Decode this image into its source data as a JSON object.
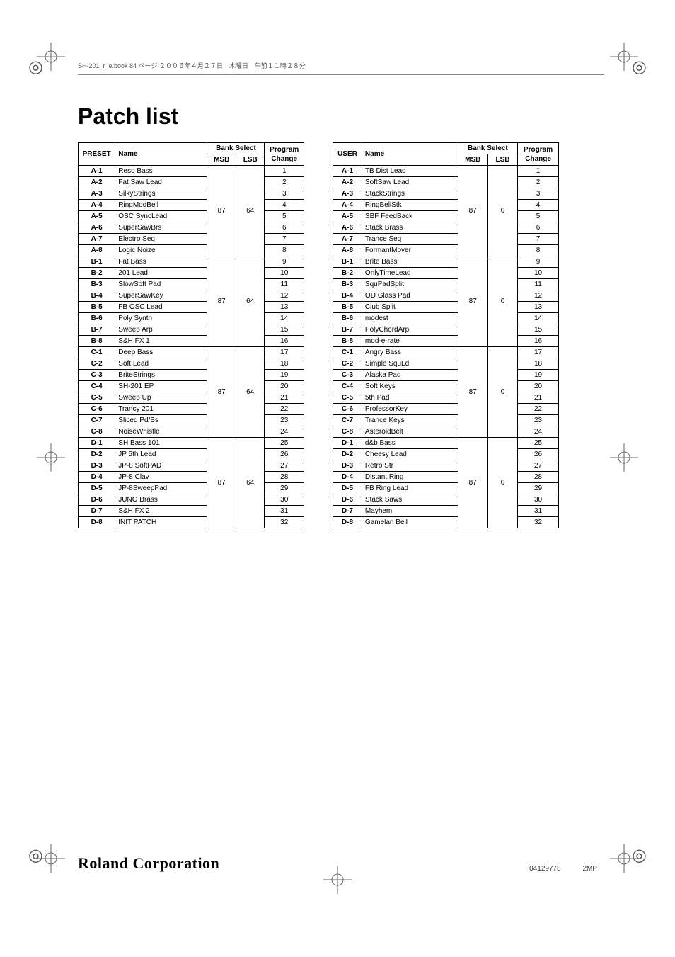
{
  "header_text": "SH-201_r_e.book  84 ページ  ２００６年４月２７日　木曜日　午前１１時２８分",
  "title": "Patch list",
  "preset_table": {
    "id_header": "PRESET",
    "name_header": "Name",
    "bank_header": "Bank Select",
    "msb_header": "MSB",
    "lsb_header": "LSB",
    "program_header": "Program Change",
    "msb": "87",
    "lsb": "64",
    "groups": [
      {
        "rows": [
          {
            "id": "A-1",
            "name": "Reso Bass",
            "change": "1"
          },
          {
            "id": "A-2",
            "name": "Fat Saw Lead",
            "change": "2"
          },
          {
            "id": "A-3",
            "name": "SilkyStrings",
            "change": "3"
          },
          {
            "id": "A-4",
            "name": "RingModBell",
            "change": "4"
          },
          {
            "id": "A-5",
            "name": "OSC SyncLead",
            "change": "5"
          },
          {
            "id": "A-6",
            "name": "SuperSawBrs",
            "change": "6"
          },
          {
            "id": "A-7",
            "name": "Electro Seq",
            "change": "7"
          },
          {
            "id": "A-8",
            "name": "Logic Noize",
            "change": "8"
          }
        ]
      },
      {
        "rows": [
          {
            "id": "B-1",
            "name": "Fat Bass",
            "change": "9"
          },
          {
            "id": "B-2",
            "name": "201 Lead",
            "change": "10"
          },
          {
            "id": "B-3",
            "name": "SlowSoft Pad",
            "change": "11"
          },
          {
            "id": "B-4",
            "name": "SuperSawKey",
            "change": "12"
          },
          {
            "id": "B-5",
            "name": "FB OSC Lead",
            "change": "13"
          },
          {
            "id": "B-6",
            "name": "Poly Synth",
            "change": "14"
          },
          {
            "id": "B-7",
            "name": "Sweep Arp",
            "change": "15"
          },
          {
            "id": "B-8",
            "name": "S&H FX 1",
            "change": "16"
          }
        ]
      },
      {
        "rows": [
          {
            "id": "C-1",
            "name": "Deep Bass",
            "change": "17"
          },
          {
            "id": "C-2",
            "name": "Soft Lead",
            "change": "18"
          },
          {
            "id": "C-3",
            "name": "BriteStrings",
            "change": "19"
          },
          {
            "id": "C-4",
            "name": "SH-201 EP",
            "change": "20"
          },
          {
            "id": "C-5",
            "name": "Sweep Up",
            "change": "21"
          },
          {
            "id": "C-6",
            "name": "Trancy 201",
            "change": "22"
          },
          {
            "id": "C-7",
            "name": "Sliced Pd/Bs",
            "change": "23"
          },
          {
            "id": "C-8",
            "name": "NoiseWhistle",
            "change": "24"
          }
        ]
      },
      {
        "rows": [
          {
            "id": "D-1",
            "name": "SH Bass 101",
            "change": "25"
          },
          {
            "id": "D-2",
            "name": "JP 5th Lead",
            "change": "26"
          },
          {
            "id": "D-3",
            "name": "JP-8 SoftPAD",
            "change": "27"
          },
          {
            "id": "D-4",
            "name": "JP-8 Clav",
            "change": "28"
          },
          {
            "id": "D-5",
            "name": "JP-8SweepPad",
            "change": "29"
          },
          {
            "id": "D-6",
            "name": "JUNO Brass",
            "change": "30"
          },
          {
            "id": "D-7",
            "name": "S&H FX 2",
            "change": "31"
          },
          {
            "id": "D-8",
            "name": "INIT PATCH",
            "change": "32"
          }
        ]
      }
    ]
  },
  "user_table": {
    "id_header": "USER",
    "name_header": "Name",
    "bank_header": "Bank Select",
    "msb_header": "MSB",
    "lsb_header": "LSB",
    "program_header": "Program Change",
    "msb": "87",
    "lsb": "0",
    "groups": [
      {
        "rows": [
          {
            "id": "A-1",
            "name": "TB Dist Lead",
            "change": "1"
          },
          {
            "id": "A-2",
            "name": "SoftSaw Lead",
            "change": "2"
          },
          {
            "id": "A-3",
            "name": "StackStrings",
            "change": "3"
          },
          {
            "id": "A-4",
            "name": "RingBellStk",
            "change": "4"
          },
          {
            "id": "A-5",
            "name": "SBF FeedBack",
            "change": "5"
          },
          {
            "id": "A-6",
            "name": "Stack Brass",
            "change": "6"
          },
          {
            "id": "A-7",
            "name": "Trance Seq",
            "change": "7"
          },
          {
            "id": "A-8",
            "name": "FormantMover",
            "change": "8"
          }
        ]
      },
      {
        "rows": [
          {
            "id": "B-1",
            "name": "Brite Bass",
            "change": "9"
          },
          {
            "id": "B-2",
            "name": "OnlyTimeLead",
            "change": "10"
          },
          {
            "id": "B-3",
            "name": "SquPadSplit",
            "change": "11"
          },
          {
            "id": "B-4",
            "name": "OD Glass Pad",
            "change": "12"
          },
          {
            "id": "B-5",
            "name": "Club Split",
            "change": "13"
          },
          {
            "id": "B-6",
            "name": "modest",
            "change": "14"
          },
          {
            "id": "B-7",
            "name": "PolyChordArp",
            "change": "15"
          },
          {
            "id": "B-8",
            "name": "mod-e-rate",
            "change": "16"
          }
        ]
      },
      {
        "rows": [
          {
            "id": "C-1",
            "name": "Angry Bass",
            "change": "17"
          },
          {
            "id": "C-2",
            "name": "Simple SquLd",
            "change": "18"
          },
          {
            "id": "C-3",
            "name": "Alaska Pad",
            "change": "19"
          },
          {
            "id": "C-4",
            "name": "Soft Keys",
            "change": "20"
          },
          {
            "id": "C-5",
            "name": "5th Pad",
            "change": "21"
          },
          {
            "id": "C-6",
            "name": "ProfessorKey",
            "change": "22"
          },
          {
            "id": "C-7",
            "name": "Trance Keys",
            "change": "23"
          },
          {
            "id": "C-8",
            "name": "AsteroidBelt",
            "change": "24"
          }
        ]
      },
      {
        "rows": [
          {
            "id": "D-1",
            "name": "d&b Bass",
            "change": "25"
          },
          {
            "id": "D-2",
            "name": "Cheesy Lead",
            "change": "26"
          },
          {
            "id": "D-3",
            "name": "Retro Str",
            "change": "27"
          },
          {
            "id": "D-4",
            "name": "Distant Ring",
            "change": "28"
          },
          {
            "id": "D-5",
            "name": "FB Ring Lead",
            "change": "29"
          },
          {
            "id": "D-6",
            "name": "Stack Saws",
            "change": "30"
          },
          {
            "id": "D-7",
            "name": "Mayhem",
            "change": "31"
          },
          {
            "id": "D-8",
            "name": "Gamelan Bell",
            "change": "32"
          }
        ]
      }
    ]
  },
  "footer": {
    "logo": "Roland Corporation",
    "code1": "04129778",
    "code2": "2MP"
  }
}
